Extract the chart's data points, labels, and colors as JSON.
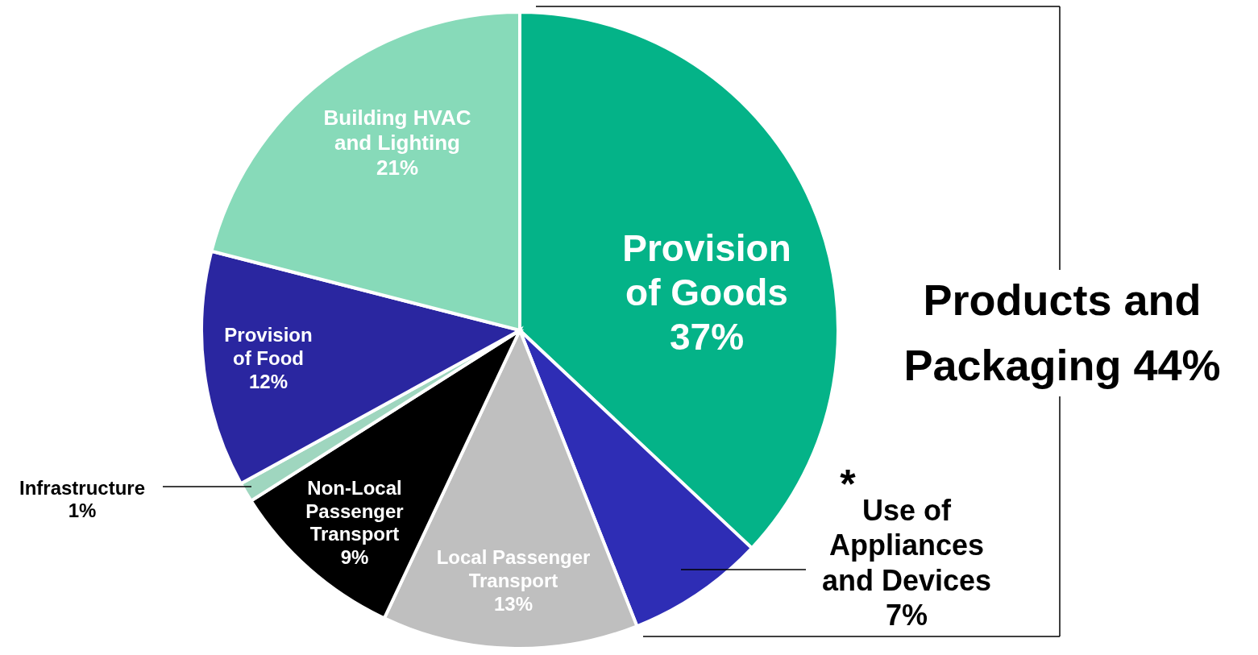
{
  "chart_data": {
    "type": "pie",
    "categories": [
      "Provision of Goods",
      "Use of Appliances and Devices",
      "Local Passenger Transport",
      "Non-Local Passenger Transport",
      "Infrastructure",
      "Provision of Food",
      "Building HVAC and Lighting"
    ],
    "values": [
      37,
      7,
      13,
      9,
      1,
      12,
      21
    ],
    "colors": [
      "#04b388",
      "#2e2db5",
      "#bfbfbf",
      "#000000",
      "#9fd6bf",
      "#2a26a0",
      "#87dab9"
    ],
    "value_labels": [
      "37%",
      "7%",
      "13%",
      "9%",
      "1%",
      "12%",
      "21%"
    ],
    "annotations": [
      "Products and Packaging 44%",
      "*"
    ]
  }
}
